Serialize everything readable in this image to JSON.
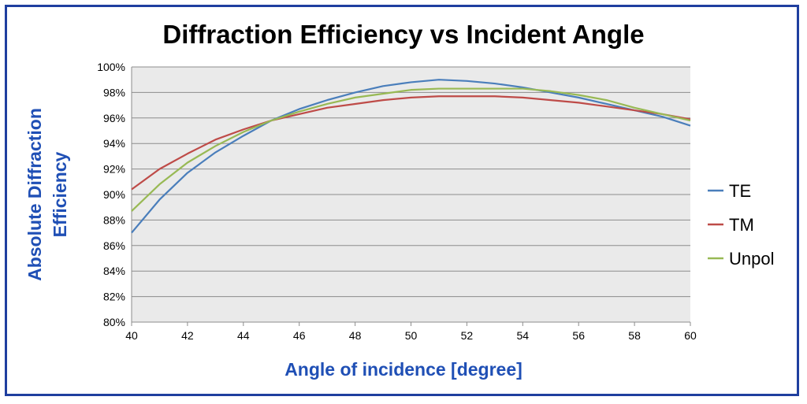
{
  "chart_data": {
    "type": "line",
    "title": "Diffraction Efficiency vs Incident Angle",
    "xlabel": "Angle of incidence [degree]",
    "ylabel_line1": "Absolute Diffraction",
    "ylabel_line2": "Efficiency",
    "xlim": [
      40,
      60
    ],
    "ylim": [
      80,
      100
    ],
    "x_ticks": [
      "40",
      "42",
      "44",
      "46",
      "48",
      "50",
      "52",
      "54",
      "56",
      "58",
      "60"
    ],
    "y_ticks": [
      "80%",
      "82%",
      "84%",
      "86%",
      "88%",
      "90%",
      "92%",
      "94%",
      "96%",
      "98%",
      "100%"
    ],
    "grid": "horizontal",
    "legend_position": "right",
    "x": [
      40,
      41,
      42,
      43,
      44,
      45,
      46,
      47,
      48,
      49,
      50,
      51,
      52,
      53,
      54,
      55,
      56,
      57,
      58,
      59,
      60
    ],
    "series": [
      {
        "name": "TE",
        "color": "#4a7ebb",
        "values": [
          87.0,
          89.6,
          91.7,
          93.3,
          94.6,
          95.8,
          96.7,
          97.4,
          98.0,
          98.5,
          98.8,
          99.0,
          98.9,
          98.7,
          98.4,
          98.0,
          97.6,
          97.1,
          96.6,
          96.1,
          95.4
        ]
      },
      {
        "name": "TM",
        "color": "#be4b48",
        "values": [
          90.4,
          92.0,
          93.2,
          94.3,
          95.1,
          95.8,
          96.3,
          96.8,
          97.1,
          97.4,
          97.6,
          97.7,
          97.7,
          97.7,
          97.6,
          97.4,
          97.2,
          96.9,
          96.6,
          96.3,
          95.9
        ]
      },
      {
        "name": "Unpol",
        "color": "#98b954",
        "values": [
          88.7,
          90.8,
          92.5,
          93.8,
          94.9,
          95.8,
          96.5,
          97.1,
          97.6,
          97.9,
          98.2,
          98.3,
          98.3,
          98.3,
          98.3,
          98.1,
          97.8,
          97.4,
          96.8,
          96.3,
          95.8
        ]
      }
    ]
  }
}
